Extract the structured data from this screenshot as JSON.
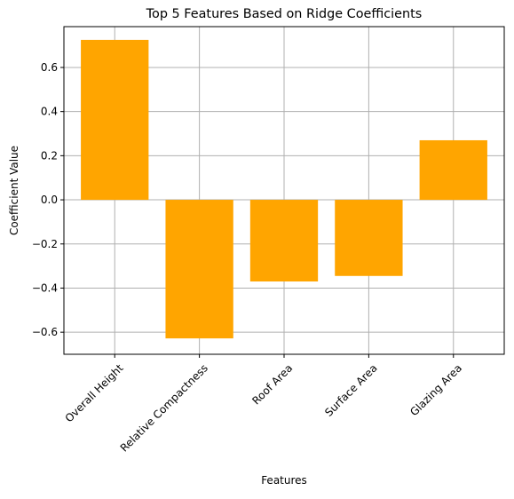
{
  "chart_data": {
    "type": "bar",
    "title": "Top 5 Features Based on Ridge Coefficients",
    "xlabel": "Features",
    "ylabel": "Coefficient Value",
    "categories": [
      "Overall Height",
      "Relative Compactness",
      "Roof Area",
      "Surface Area",
      "Glazing Area"
    ],
    "values": [
      0.725,
      -0.628,
      -0.37,
      -0.345,
      0.27
    ],
    "ylim": [
      -0.7,
      0.785
    ],
    "yticks": [
      -0.6,
      -0.4,
      -0.2,
      0.0,
      0.2,
      0.4,
      0.6
    ],
    "ytick_labels": [
      "−0.6",
      "−0.4",
      "−0.2",
      "0.0",
      "0.2",
      "0.4",
      "0.6"
    ],
    "grid": true,
    "bar_color": "#ffa500",
    "grid_color": "#b0b0b0",
    "xtick_rotation_deg": 45
  }
}
